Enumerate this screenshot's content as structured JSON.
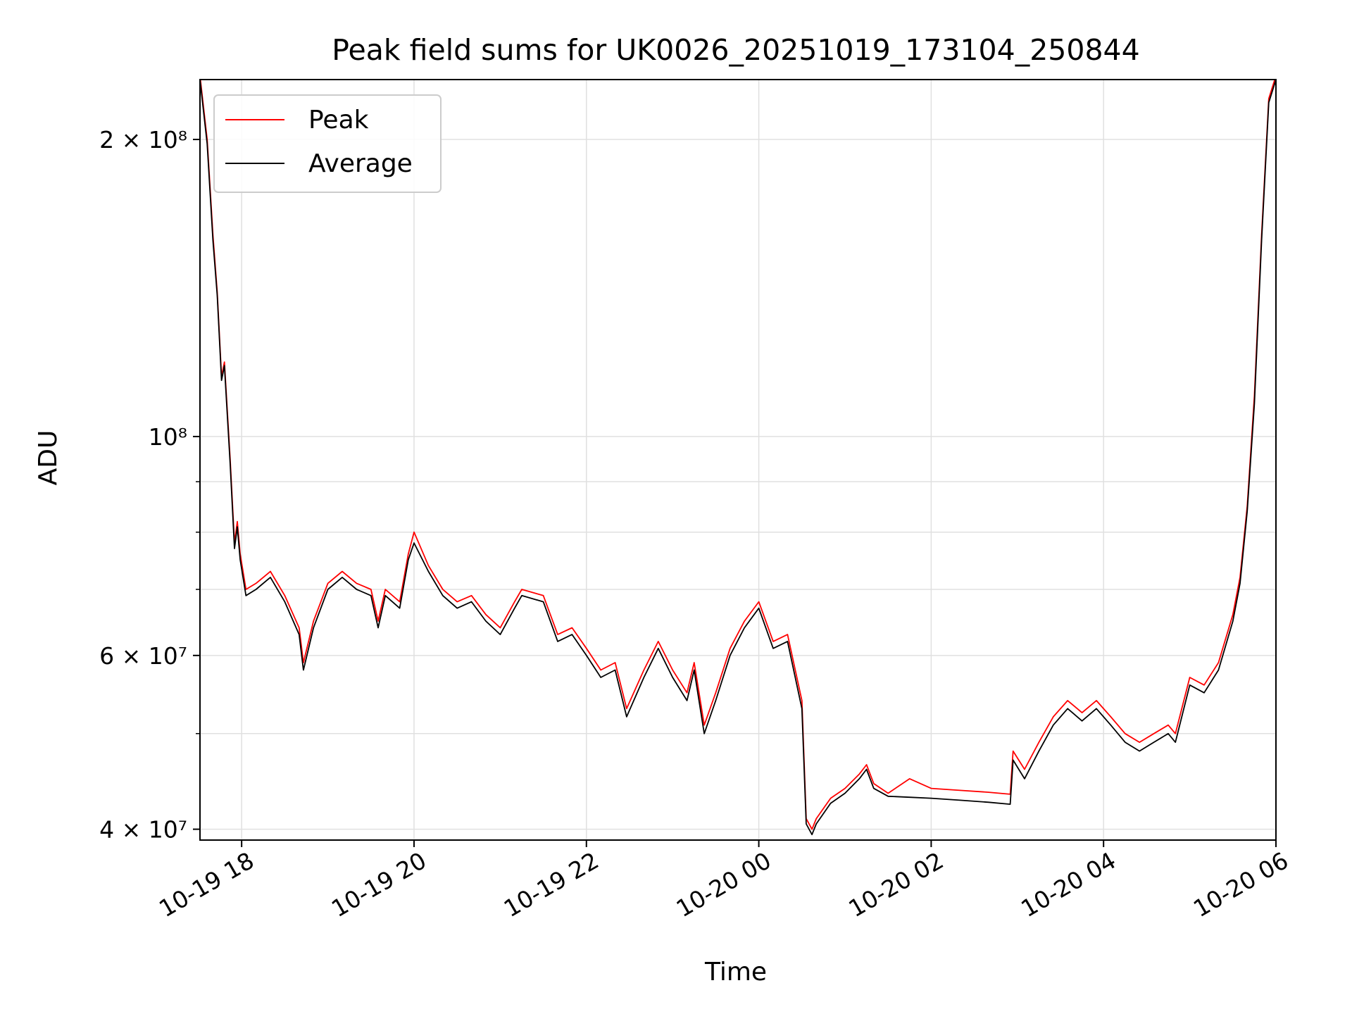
{
  "chart_data": {
    "type": "line",
    "title": "Peak field sums for UK0026_20251019_173104_250844",
    "xlabel": "Time",
    "ylabel": "ADU",
    "yscale": "log",
    "ylim": [
      39000000,
      230000000
    ],
    "xlim": [
      "2025-10-19 17:31",
      "2025-10-20 06:00"
    ],
    "grid": true,
    "legend_position": "top-left",
    "x_ticks": [
      {
        "t": "2025-10-19 18:00",
        "label": "10-19 18"
      },
      {
        "t": "2025-10-19 20:00",
        "label": "10-19 20"
      },
      {
        "t": "2025-10-19 22:00",
        "label": "10-19 22"
      },
      {
        "t": "2025-10-20 00:00",
        "label": "10-20 00"
      },
      {
        "t": "2025-10-20 02:00",
        "label": "10-20 02"
      },
      {
        "t": "2025-10-20 04:00",
        "label": "10-20 04"
      },
      {
        "t": "2025-10-20 06:00",
        "label": "10-20 06"
      }
    ],
    "y_ticks_major": [
      {
        "v": 40000000,
        "label": "4 × 10⁷"
      },
      {
        "v": 60000000,
        "label": "6 × 10⁷"
      },
      {
        "v": 100000000,
        "label": "10⁸"
      },
      {
        "v": 200000000,
        "label": "2 × 10⁸"
      }
    ],
    "y_ticks_minor": [
      50000000,
      70000000,
      80000000,
      90000000
    ],
    "series": [
      {
        "name": "Peak",
        "color": "#ff0000",
        "t": [
          "2025-10-19 17:31",
          "2025-10-19 17:36",
          "2025-10-19 17:40",
          "2025-10-19 17:43",
          "2025-10-19 17:46",
          "2025-10-19 17:48",
          "2025-10-19 17:52",
          "2025-10-19 17:55",
          "2025-10-19 17:57",
          "2025-10-19 17:59",
          "2025-10-19 18:03",
          "2025-10-19 18:10",
          "2025-10-19 18:20",
          "2025-10-19 18:30",
          "2025-10-19 18:40",
          "2025-10-19 18:43",
          "2025-10-19 18:50",
          "2025-10-19 19:00",
          "2025-10-19 19:10",
          "2025-10-19 19:20",
          "2025-10-19 19:30",
          "2025-10-19 19:35",
          "2025-10-19 19:40",
          "2025-10-19 19:50",
          "2025-10-19 19:56",
          "2025-10-19 20:00",
          "2025-10-19 20:10",
          "2025-10-19 20:20",
          "2025-10-19 20:30",
          "2025-10-19 20:40",
          "2025-10-19 20:50",
          "2025-10-19 21:00",
          "2025-10-19 21:10",
          "2025-10-19 21:15",
          "2025-10-19 21:30",
          "2025-10-19 21:40",
          "2025-10-19 21:50",
          "2025-10-19 22:00",
          "2025-10-19 22:10",
          "2025-10-19 22:20",
          "2025-10-19 22:28",
          "2025-10-19 22:40",
          "2025-10-19 22:50",
          "2025-10-19 23:00",
          "2025-10-19 23:10",
          "2025-10-19 23:15",
          "2025-10-19 23:22",
          "2025-10-19 23:30",
          "2025-10-19 23:40",
          "2025-10-19 23:50",
          "2025-10-20 00:00",
          "2025-10-20 00:10",
          "2025-10-20 00:20",
          "2025-10-20 00:30",
          "2025-10-20 00:33",
          "2025-10-20 00:37",
          "2025-10-20 00:40",
          "2025-10-20 00:50",
          "2025-10-20 01:00",
          "2025-10-20 01:10",
          "2025-10-20 01:15",
          "2025-10-20 01:20",
          "2025-10-20 01:30",
          "2025-10-20 01:45",
          "2025-10-20 02:00",
          "2025-10-20 02:20",
          "2025-10-20 02:40",
          "2025-10-20 02:55",
          "2025-10-20 02:57",
          "2025-10-20 03:05",
          "2025-10-20 03:15",
          "2025-10-20 03:25",
          "2025-10-20 03:35",
          "2025-10-20 03:45",
          "2025-10-20 03:55",
          "2025-10-20 04:05",
          "2025-10-20 04:15",
          "2025-10-20 04:25",
          "2025-10-20 04:35",
          "2025-10-20 04:45",
          "2025-10-20 04:50",
          "2025-10-20 05:00",
          "2025-10-20 05:10",
          "2025-10-20 05:20",
          "2025-10-20 05:30",
          "2025-10-20 05:35",
          "2025-10-20 05:40",
          "2025-10-20 05:45",
          "2025-10-20 05:50",
          "2025-10-20 05:55",
          "2025-10-20 06:00"
        ],
        "values": [
          232000000,
          200000000,
          160000000,
          140000000,
          115000000,
          119000000,
          95000000,
          78000000,
          82000000,
          76000000,
          70000000,
          71000000,
          73000000,
          69000000,
          64000000,
          59000000,
          65000000,
          71000000,
          73000000,
          71000000,
          70000000,
          65000000,
          70000000,
          68000000,
          76000000,
          80000000,
          74000000,
          70000000,
          68000000,
          69000000,
          66000000,
          64000000,
          68000000,
          70000000,
          69000000,
          63000000,
          64000000,
          61000000,
          58000000,
          59000000,
          53000000,
          58000000,
          62000000,
          58000000,
          55000000,
          59000000,
          51000000,
          55000000,
          61000000,
          65000000,
          68000000,
          62000000,
          63000000,
          54000000,
          41000000,
          40000000,
          41000000,
          43000000,
          44000000,
          45500000,
          46500000,
          44500000,
          43500000,
          45000000,
          44000000,
          43800000,
          43600000,
          43400000,
          48000000,
          46000000,
          49000000,
          52000000,
          54000000,
          52500000,
          54000000,
          52000000,
          50000000,
          49000000,
          50000000,
          51000000,
          50000000,
          57000000,
          56000000,
          59000000,
          66000000,
          72000000,
          85000000,
          110000000,
          160000000,
          220000000,
          232000000
        ]
      },
      {
        "name": "Average",
        "color": "#000000",
        "t": [
          "2025-10-19 17:31",
          "2025-10-19 17:36",
          "2025-10-19 17:40",
          "2025-10-19 17:43",
          "2025-10-19 17:46",
          "2025-10-19 17:48",
          "2025-10-19 17:52",
          "2025-10-19 17:55",
          "2025-10-19 17:57",
          "2025-10-19 17:59",
          "2025-10-19 18:03",
          "2025-10-19 18:10",
          "2025-10-19 18:20",
          "2025-10-19 18:30",
          "2025-10-19 18:40",
          "2025-10-19 18:43",
          "2025-10-19 18:50",
          "2025-10-19 19:00",
          "2025-10-19 19:10",
          "2025-10-19 19:20",
          "2025-10-19 19:30",
          "2025-10-19 19:35",
          "2025-10-19 19:40",
          "2025-10-19 19:50",
          "2025-10-19 19:56",
          "2025-10-19 20:00",
          "2025-10-19 20:10",
          "2025-10-19 20:20",
          "2025-10-19 20:30",
          "2025-10-19 20:40",
          "2025-10-19 20:50",
          "2025-10-19 21:00",
          "2025-10-19 21:10",
          "2025-10-19 21:15",
          "2025-10-19 21:30",
          "2025-10-19 21:40",
          "2025-10-19 21:50",
          "2025-10-19 22:00",
          "2025-10-19 22:10",
          "2025-10-19 22:20",
          "2025-10-19 22:28",
          "2025-10-19 22:40",
          "2025-10-19 22:50",
          "2025-10-19 23:00",
          "2025-10-19 23:10",
          "2025-10-19 23:15",
          "2025-10-19 23:22",
          "2025-10-19 23:30",
          "2025-10-19 23:40",
          "2025-10-19 23:50",
          "2025-10-20 00:00",
          "2025-10-20 00:10",
          "2025-10-20 00:20",
          "2025-10-20 00:30",
          "2025-10-20 00:33",
          "2025-10-20 00:37",
          "2025-10-20 00:40",
          "2025-10-20 00:50",
          "2025-10-20 01:00",
          "2025-10-20 01:10",
          "2025-10-20 01:15",
          "2025-10-20 01:20",
          "2025-10-20 01:30",
          "2025-10-20 01:45",
          "2025-10-20 02:00",
          "2025-10-20 02:20",
          "2025-10-20 02:40",
          "2025-10-20 02:55",
          "2025-10-20 02:57",
          "2025-10-20 03:05",
          "2025-10-20 03:15",
          "2025-10-20 03:25",
          "2025-10-20 03:35",
          "2025-10-20 03:45",
          "2025-10-20 03:55",
          "2025-10-20 04:05",
          "2025-10-20 04:15",
          "2025-10-20 04:25",
          "2025-10-20 04:35",
          "2025-10-20 04:45",
          "2025-10-20 04:50",
          "2025-10-20 05:00",
          "2025-10-20 05:10",
          "2025-10-20 05:20",
          "2025-10-20 05:30",
          "2025-10-20 05:35",
          "2025-10-20 05:40",
          "2025-10-20 05:45",
          "2025-10-20 05:50",
          "2025-10-20 05:55",
          "2025-10-20 06:00"
        ],
        "values": [
          230000000,
          198000000,
          158000000,
          139000000,
          114000000,
          118000000,
          94000000,
          77000000,
          81000000,
          75000000,
          69000000,
          70000000,
          72000000,
          68000000,
          63000000,
          58000000,
          64000000,
          70000000,
          72000000,
          70000000,
          69000000,
          64000000,
          69000000,
          67000000,
          75000000,
          78000000,
          73000000,
          69000000,
          67000000,
          68000000,
          65000000,
          63000000,
          67000000,
          69000000,
          68000000,
          62000000,
          63000000,
          60000000,
          57000000,
          58000000,
          52000000,
          57000000,
          61000000,
          57000000,
          54000000,
          58000000,
          50000000,
          54000000,
          60000000,
          64000000,
          67000000,
          61000000,
          62000000,
          53000000,
          40500000,
          39500000,
          40500000,
          42500000,
          43500000,
          45000000,
          46000000,
          44000000,
          43200000,
          43100000,
          43000000,
          42800000,
          42600000,
          42400000,
          47000000,
          45000000,
          48000000,
          51000000,
          53000000,
          51500000,
          53000000,
          51000000,
          49000000,
          48000000,
          49000000,
          50000000,
          49000000,
          56000000,
          55000000,
          58000000,
          65000000,
          71000000,
          84000000,
          108000000,
          158000000,
          218000000,
          230000000
        ]
      }
    ]
  }
}
